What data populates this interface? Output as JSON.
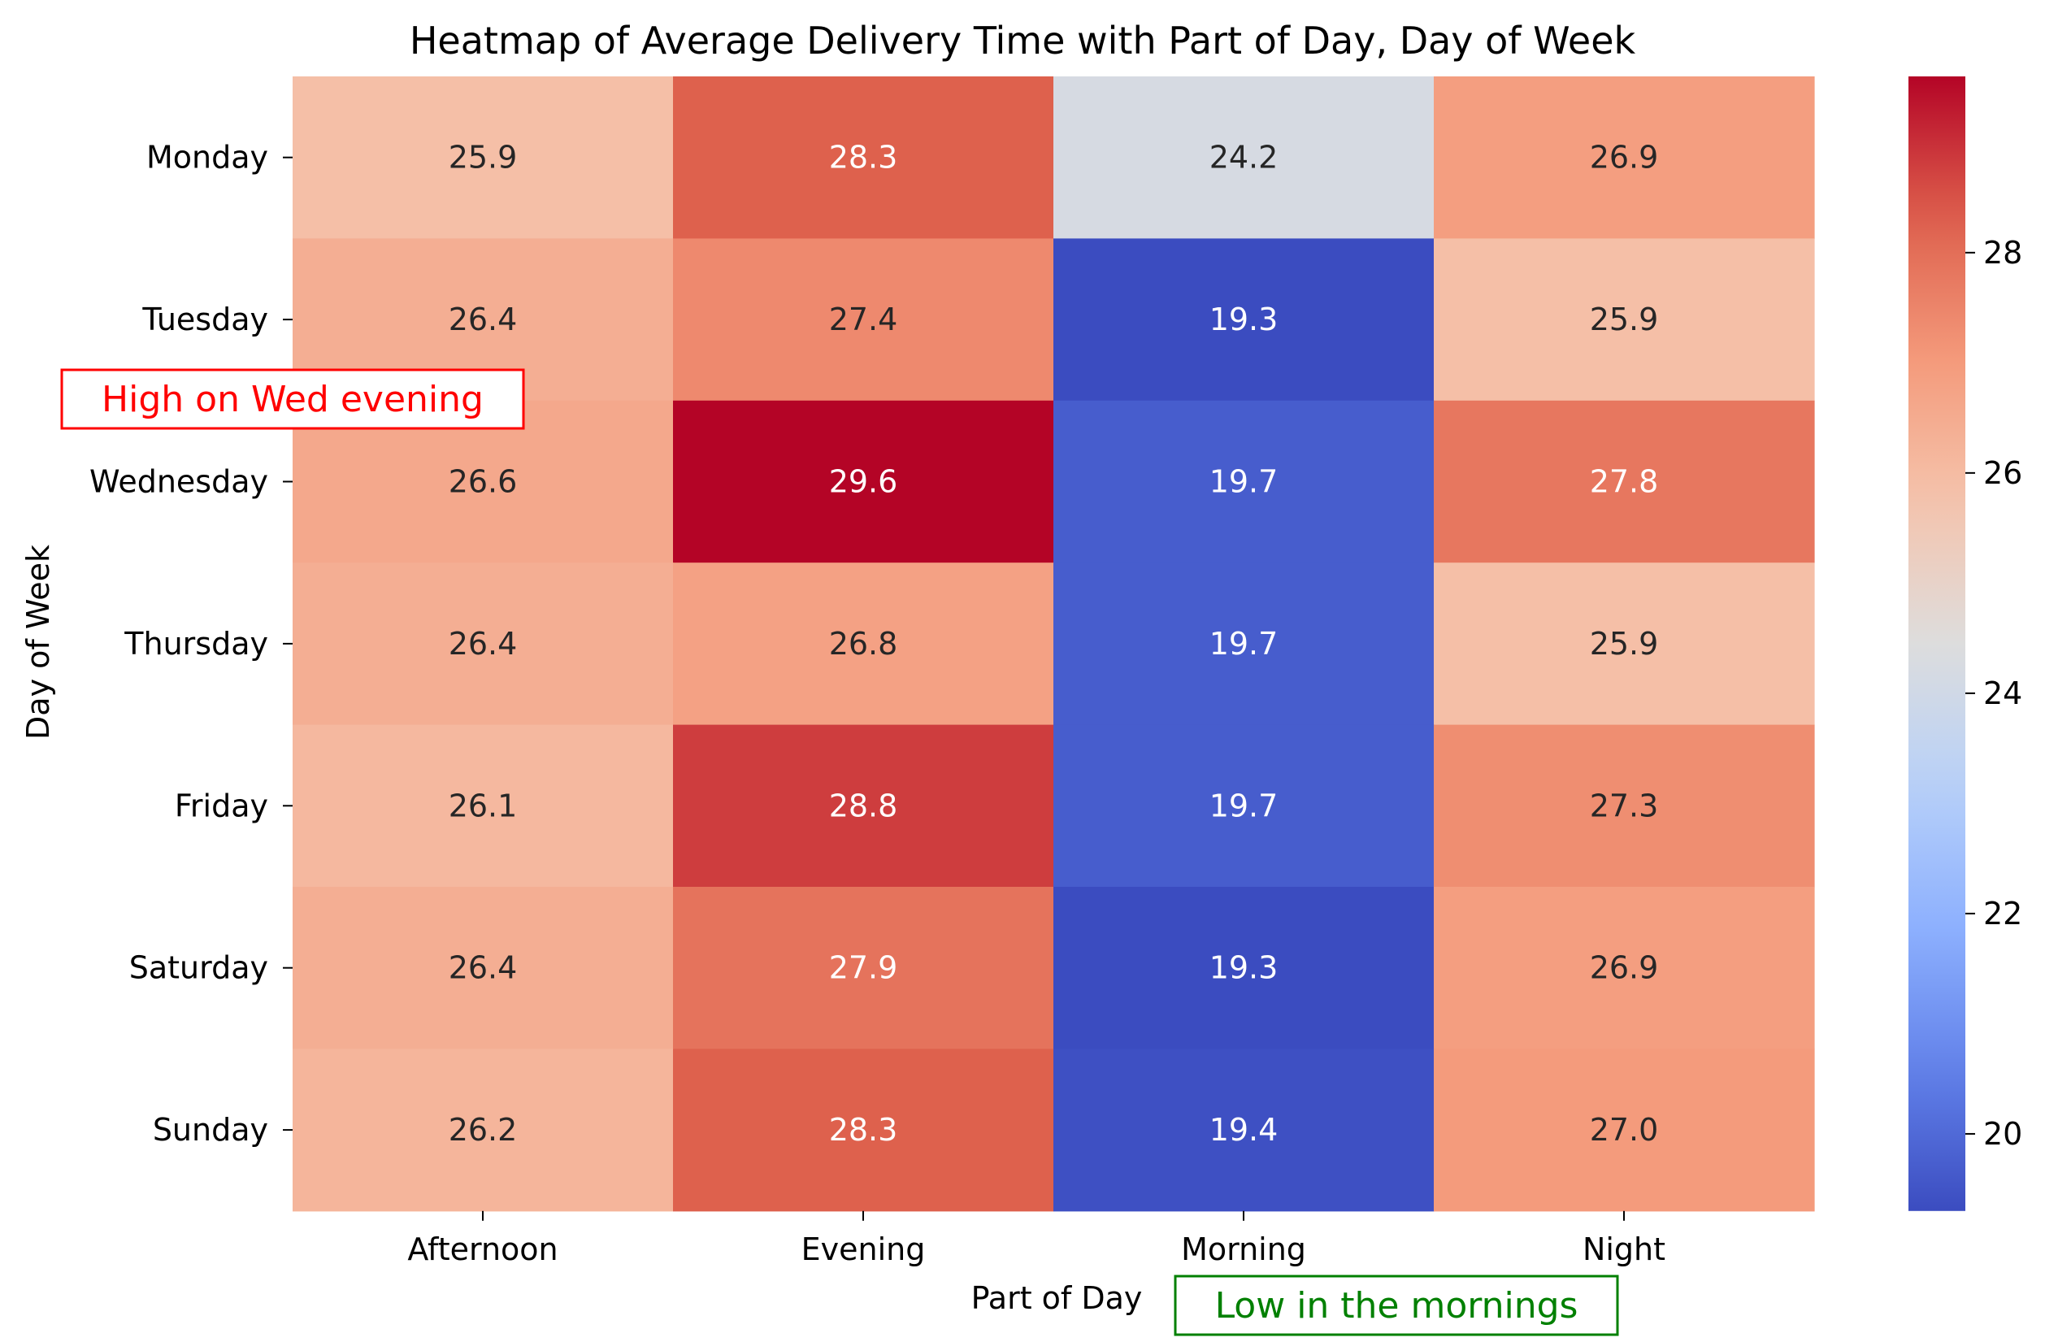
{
  "chart_data": {
    "type": "heatmap",
    "title": "Heatmap of Average Delivery Time with Part of Day, Day of Week",
    "xlabel": "Part of Day",
    "ylabel": "Day of Week",
    "x_categories": [
      "Afternoon",
      "Evening",
      "Morning",
      "Night"
    ],
    "y_categories": [
      "Monday",
      "Tuesday",
      "Wednesday",
      "Thursday",
      "Friday",
      "Saturday",
      "Sunday"
    ],
    "values": [
      [
        25.9,
        28.3,
        24.2,
        26.9
      ],
      [
        26.4,
        27.4,
        19.3,
        25.9
      ],
      [
        26.6,
        29.6,
        19.7,
        27.8
      ],
      [
        26.4,
        26.8,
        19.7,
        25.9
      ],
      [
        26.1,
        28.8,
        19.7,
        27.3
      ],
      [
        26.4,
        27.9,
        19.3,
        26.9
      ],
      [
        26.2,
        28.3,
        19.4,
        27.0
      ]
    ],
    "value_labels": [
      [
        "25.9",
        "28.3",
        "24.2",
        "26.9"
      ],
      [
        "26.4",
        "27.4",
        "19.3",
        "25.9"
      ],
      [
        "26.6",
        "29.6",
        "19.7",
        "27.8"
      ],
      [
        "26.4",
        "26.8",
        "19.7",
        "25.9"
      ],
      [
        "26.1",
        "28.8",
        "19.7",
        "27.3"
      ],
      [
        "26.4",
        "27.9",
        "19.3",
        "26.9"
      ],
      [
        "26.2",
        "28.3",
        "19.4",
        "27.0"
      ]
    ],
    "colormap": "coolwarm",
    "vmin": 19.3,
    "vmax": 29.6,
    "colorbar_ticks": [
      20,
      22,
      24,
      26,
      28
    ],
    "annotations": [
      {
        "text": "High on Wed evening",
        "color": "#ff0000"
      },
      {
        "text": "Low in the mornings",
        "color": "#008000"
      }
    ]
  }
}
